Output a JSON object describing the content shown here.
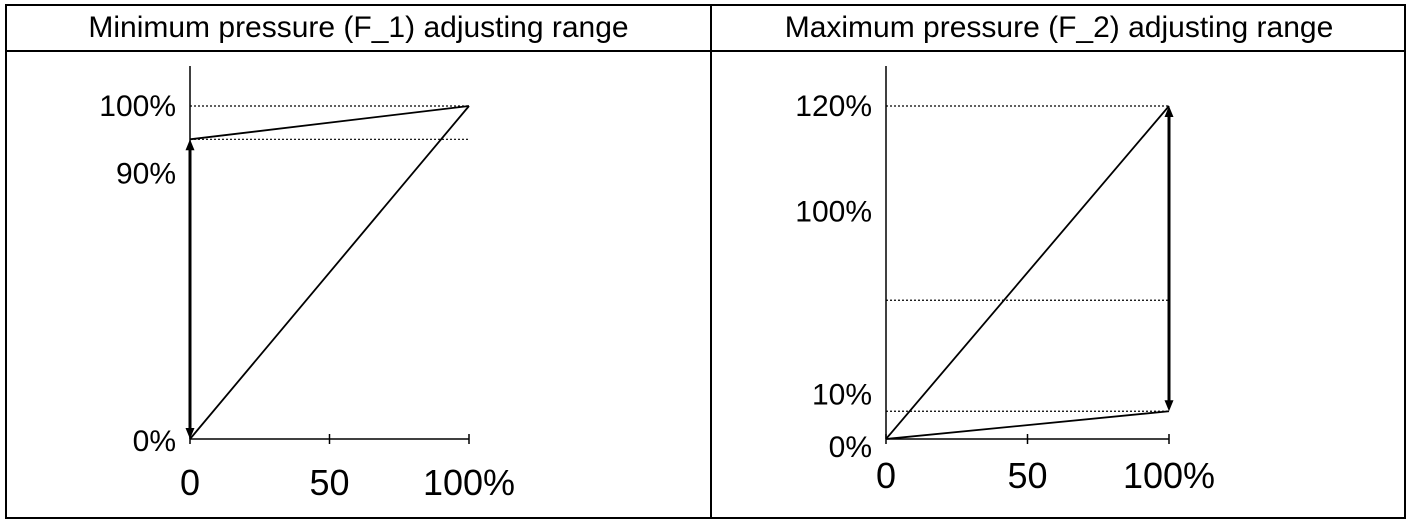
{
  "chart_data": [
    {
      "type": "line",
      "title": "Minimum pressure (F_1) adjusting range",
      "x_ticks": [
        "0",
        "50",
        "100%"
      ],
      "y_ticks": [
        "100%",
        "90%",
        "0%"
      ],
      "xlim": [
        0,
        100
      ],
      "ylim": [
        0,
        100
      ],
      "series": [
        {
          "x": [
            0,
            100
          ],
          "y": [
            0,
            100
          ]
        },
        {
          "x": [
            0,
            100
          ],
          "y": [
            90,
            100
          ]
        }
      ],
      "reference_lines_y": [
        100,
        90
      ],
      "range_arrow": {
        "x": 0,
        "y_from": 0,
        "y_to": 90,
        "style": "double-headed"
      },
      "colors": {
        "line": "#000000",
        "grid": "#000000"
      }
    },
    {
      "type": "line",
      "title": "Maximum pressure (F_2) adjusting range",
      "x_ticks": [
        "0",
        "50",
        "100%"
      ],
      "y_ticks": [
        "120%",
        "100%",
        "10%",
        "0%"
      ],
      "xlim": [
        0,
        100
      ],
      "ylim": [
        0,
        120
      ],
      "series": [
        {
          "x": [
            0,
            100
          ],
          "y": [
            0,
            120
          ]
        },
        {
          "x": [
            0,
            100
          ],
          "y": [
            0,
            10
          ]
        }
      ],
      "reference_lines_y": [
        120,
        50,
        10
      ],
      "range_arrow": {
        "x": 100,
        "y_from": 10,
        "y_to": 120,
        "style": "double-headed"
      },
      "colors": {
        "line": "#000000",
        "grid": "#000000"
      }
    }
  ]
}
